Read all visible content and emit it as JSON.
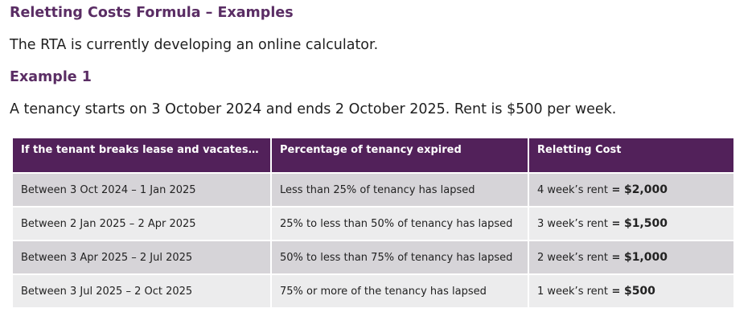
{
  "document": {
    "title": "Reletting Costs Formula – Examples",
    "intro": "The RTA is currently developing an online calculator.",
    "example_heading": "Example 1",
    "tenancy_text": "A tenancy starts on 3 October 2024 and ends 2 October 2025.  Rent is $500 per week."
  },
  "table": {
    "headers": [
      "If the tenant breaks lease and vacates…",
      "Percentage of tenancy expired",
      "Reletting Cost"
    ],
    "rows": [
      {
        "period": "Between 3 Oct 2024 – 1 Jan 2025",
        "percentage": "Less than 25% of tenancy has lapsed",
        "cost_rent": "4 week’s rent",
        "cost_eq": " = ",
        "cost_amount": "$2,000"
      },
      {
        "period": "Between 2 Jan 2025 – 2 Apr 2025",
        "percentage": "25% to less than 50% of tenancy has lapsed",
        "cost_rent": "3 week’s rent",
        "cost_eq": " = ",
        "cost_amount": "$1,500"
      },
      {
        "period": "Between 3 Apr 2025 – 2 Jul 2025",
        "percentage": "50% to less than 75% of tenancy has lapsed",
        "cost_rent": "2 week’s rent",
        "cost_eq": " = ",
        "cost_amount": "$1,000"
      },
      {
        "period": "Between 3 Jul 2025 – 2 Oct 2025",
        "percentage": "75% or more of the tenancy has lapsed",
        "cost_rent": "1 week’s rent",
        "cost_eq": " = ",
        "cost_amount": "$500"
      }
    ]
  },
  "colors": {
    "heading": "#5a2d64",
    "header_bg": "#52215a",
    "row_odd": "#d6d4d8",
    "row_even": "#ececed"
  }
}
